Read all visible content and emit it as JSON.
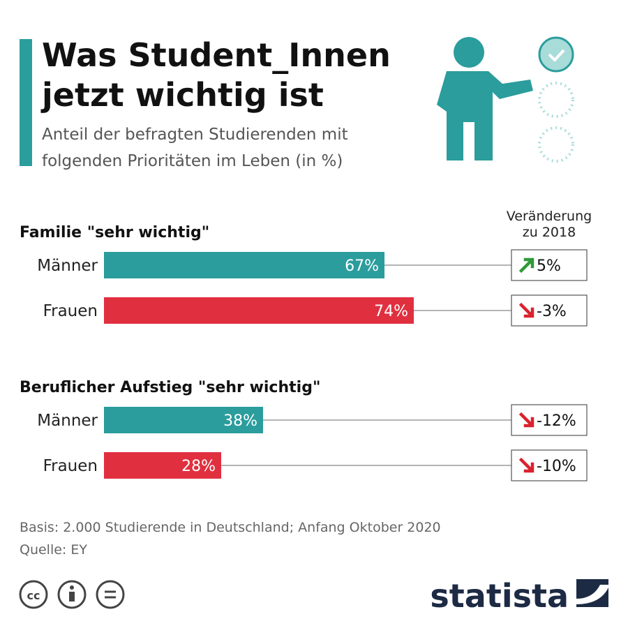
{
  "header": {
    "title": [
      "Was Student_Innen",
      "jetzt wichtig ist"
    ],
    "subtitle": [
      "Anteil der befragten Studierenden mit",
      "folgenden Prioritäten im Leben (in %)"
    ]
  },
  "change_header": [
    "Veränderung",
    "zu 2018"
  ],
  "up_color": "#2e9a3a",
  "down_color": "#d9232e",
  "chart_data": [
    {
      "type": "bar",
      "title": "Familie \"sehr wichtig\"",
      "categories": [
        "Männer",
        "Frauen"
      ],
      "values": [
        67,
        74
      ],
      "value_labels": [
        "67%",
        "74%"
      ],
      "colors": [
        "#2a9d9c",
        "#e0303f"
      ],
      "changes": [
        5,
        -3
      ],
      "change_labels": [
        "5%",
        "-3%"
      ]
    },
    {
      "type": "bar",
      "title": "Beruflicher Aufstieg \"sehr wichtig\"",
      "categories": [
        "Männer",
        "Frauen"
      ],
      "values": [
        38,
        28
      ],
      "value_labels": [
        "38%",
        "28%"
      ],
      "colors": [
        "#2a9d9c",
        "#e0303f"
      ],
      "changes": [
        -12,
        -10
      ],
      "change_labels": [
        "-12%",
        "-10%"
      ]
    }
  ],
  "footer": {
    "notes": [
      "Basis: 2.000 Studierende in Deutschland; Anfang Oktober 2020",
      "Quelle: EY"
    ],
    "brand": "statista"
  }
}
